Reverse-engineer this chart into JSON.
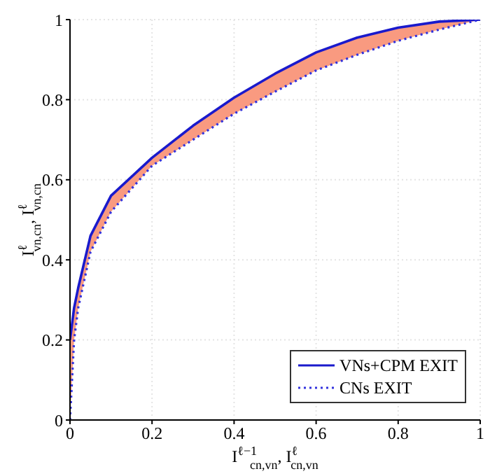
{
  "chart_data": {
    "type": "line",
    "xlabel": "I$^{ℓ−1}$$_{cn,vn}$, I$^{ℓ}$$_{cn,vn}$",
    "ylabel": "I$^{ℓ}$$_{vn,cn}$, I$^{ℓ}$$_{vn,cn}$",
    "x": [
      0,
      0.01,
      0.02,
      0.05,
      0.1,
      0.2,
      0.3,
      0.4,
      0.5,
      0.6,
      0.7,
      0.8,
      0.9,
      1
    ],
    "series": [
      {
        "name": "VNs+CPM EXIT",
        "color": "#1a1acc",
        "line_style": "solid",
        "values": [
          0.2,
          0.28,
          0.33,
          0.46,
          0.56,
          0.655,
          0.735,
          0.805,
          0.865,
          0.918,
          0.955,
          0.98,
          0.995,
          1
        ],
        "lower": [
          0,
          0.2,
          0.28,
          0.42,
          0.52,
          0.635,
          0.7,
          0.765,
          0.82,
          0.873,
          0.912,
          0.947,
          0.975,
          1
        ],
        "upper": [
          0.2,
          0.28,
          0.33,
          0.46,
          0.56,
          0.655,
          0.735,
          0.805,
          0.865,
          0.918,
          0.955,
          0.98,
          0.995,
          1
        ]
      },
      {
        "name": "CNs EXIT",
        "color": "#3333dd",
        "line_style": "dotted",
        "values": [
          0,
          0.2,
          0.28,
          0.42,
          0.52,
          0.635,
          0.7,
          0.765,
          0.82,
          0.873,
          0.912,
          0.947,
          0.975,
          1
        ]
      }
    ],
    "xlim": [
      0,
      1
    ],
    "ylim": [
      0,
      1
    ],
    "xticks": [
      0,
      0.2,
      0.4,
      0.6,
      0.8,
      1
    ],
    "yticks": [
      0,
      0.2,
      0.4,
      0.6,
      0.8,
      1
    ],
    "grid": true,
    "legend": "bottom right",
    "marker": "none"
  }
}
